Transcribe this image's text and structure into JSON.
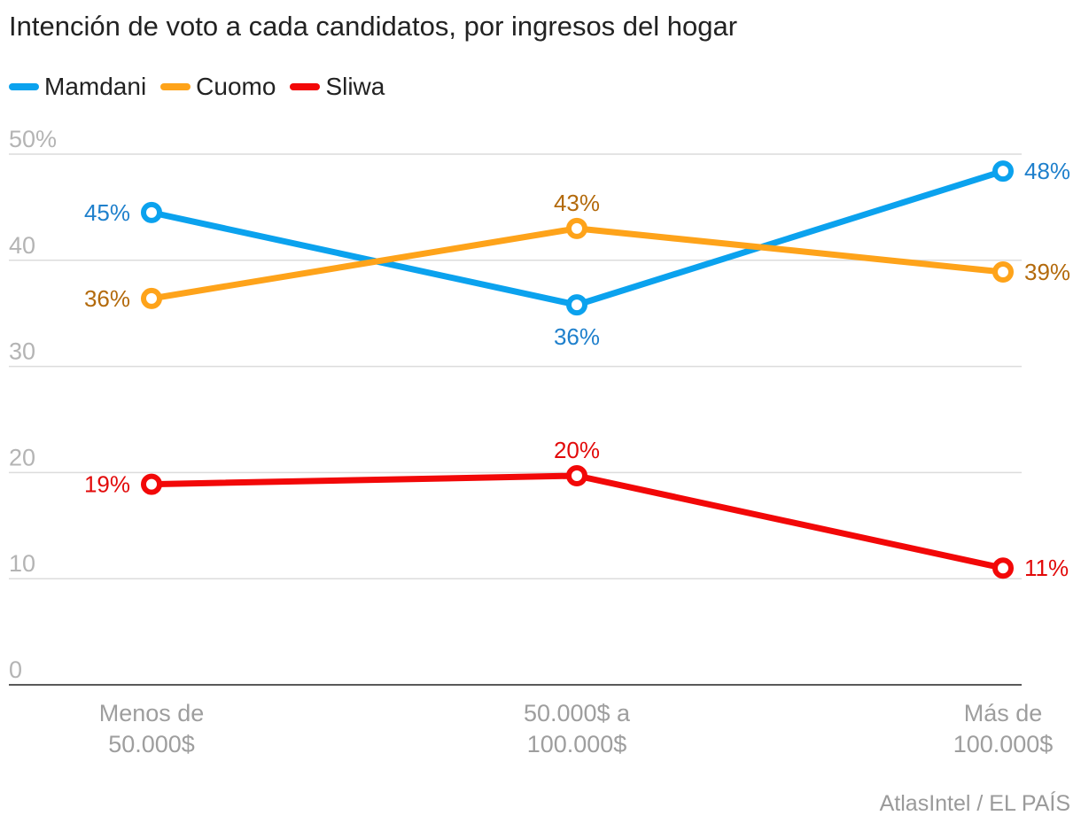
{
  "title": "Intención de voto a cada candidatos, por ingresos del hogar",
  "source": "AtlasIntel / EL PAÍS",
  "chart_data": {
    "type": "line",
    "title": "Intención de voto a cada candidatos, por ingresos del hogar",
    "xlabel": "",
    "ylabel": "",
    "ylim": [
      0,
      50
    ],
    "yticks": [
      {
        "value": 0,
        "label": "0"
      },
      {
        "value": 10,
        "label": "10"
      },
      {
        "value": 20,
        "label": "20"
      },
      {
        "value": 30,
        "label": "30"
      },
      {
        "value": 40,
        "label": "40"
      },
      {
        "value": 50,
        "label": "50%"
      }
    ],
    "categories": [
      [
        "Menos de",
        "50.000$"
      ],
      [
        "50.000$ a",
        "100.000$"
      ],
      [
        "Más de",
        "100.000$"
      ]
    ],
    "grid": true,
    "legend_position": "top-left",
    "series": [
      {
        "name": "Mamdani",
        "color": "#0ba2ee",
        "label_color": "#1f80cc",
        "values": [
          44.5,
          35.8,
          48.4
        ],
        "labels": [
          "45%",
          "36%",
          "48%"
        ],
        "label_positions": [
          "left",
          "below",
          "right"
        ]
      },
      {
        "name": "Cuomo",
        "color": "#fea31a",
        "label_color": "#b36a0c",
        "values": [
          36.4,
          43.0,
          38.9
        ],
        "labels": [
          "36%",
          "43%",
          "39%"
        ],
        "label_positions": [
          "left",
          "above",
          "right"
        ]
      },
      {
        "name": "Sliwa",
        "color": "#f20808",
        "label_color": "#e20a0a",
        "values": [
          18.9,
          19.7,
          11.0
        ],
        "labels": [
          "19%",
          "20%",
          "11%"
        ],
        "label_positions": [
          "left",
          "above",
          "right"
        ]
      }
    ]
  }
}
